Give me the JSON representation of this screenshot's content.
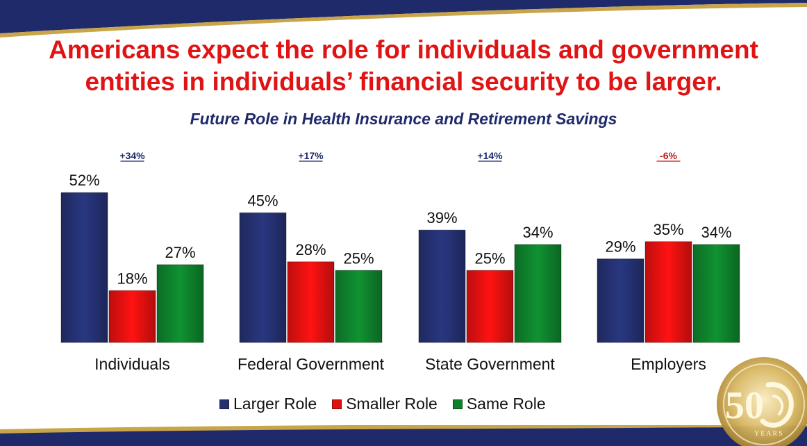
{
  "headline": {
    "line1": "Americans expect the role for individuals and government",
    "line2": "entities in individuals’ financial security to be larger."
  },
  "logo": {
    "number": "50",
    "years": "YEARS"
  },
  "colors": {
    "larger": "#24306f",
    "smaller": "#e01010",
    "same": "#0e7f2b",
    "headline": "#e01414",
    "title": "#1f2a6b",
    "positive_change": "#1f2a6b",
    "negative_change": "#c01818"
  },
  "chart_data": {
    "type": "bar",
    "title": "Future Role in Health Insurance and Retirement Savings",
    "categories": [
      "Individuals",
      "Federal Government",
      "State Government",
      "Employers"
    ],
    "series": [
      {
        "name": "Larger Role",
        "values": [
          52,
          45,
          39,
          29
        ],
        "labels": [
          "52%",
          "45%",
          "39%",
          "29%"
        ]
      },
      {
        "name": "Smaller Role",
        "values": [
          18,
          28,
          25,
          35
        ],
        "labels": [
          "18%",
          "28%",
          "25%",
          "35%"
        ]
      },
      {
        "name": "Same Role",
        "values": [
          27,
          25,
          34,
          34
        ],
        "labels": [
          "27%",
          "25%",
          "34%",
          "34%"
        ]
      }
    ],
    "annotations": [
      "+34%",
      "+17%",
      "+14%",
      "-6%"
    ],
    "ylim": [
      0,
      60
    ],
    "grid": false,
    "legend_position": "bottom"
  }
}
